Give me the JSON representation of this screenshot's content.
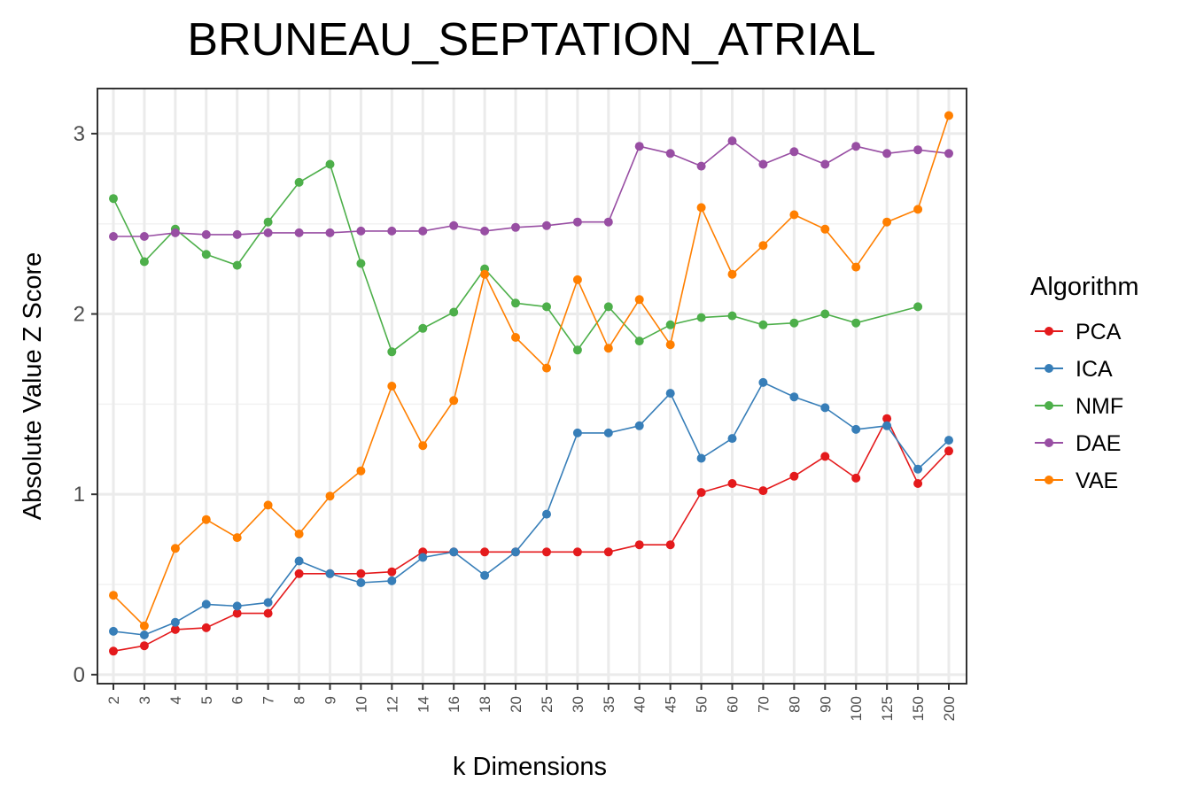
{
  "chart_data": {
    "type": "line",
    "title": "BRUNEAU_SEPTATION_ATRIAL",
    "xlabel": "k Dimensions",
    "ylabel": "Absolute Value Z Score",
    "categories": [
      "2",
      "3",
      "4",
      "5",
      "6",
      "7",
      "8",
      "9",
      "10",
      "12",
      "14",
      "16",
      "18",
      "20",
      "25",
      "30",
      "35",
      "40",
      "45",
      "50",
      "60",
      "70",
      "80",
      "90",
      "100",
      "125",
      "150",
      "200"
    ],
    "ylim": [
      -0.05,
      3.25
    ],
    "yticks": [
      0,
      1,
      2,
      3
    ],
    "grid": true,
    "legend": {
      "title": "Algorithm",
      "placement": "right"
    },
    "series": [
      {
        "name": "PCA",
        "color": "#e41a1c",
        "values": [
          0.13,
          0.16,
          0.25,
          0.26,
          0.34,
          0.34,
          0.56,
          0.56,
          0.56,
          0.57,
          0.68,
          0.68,
          0.68,
          0.68,
          0.68,
          0.68,
          0.68,
          0.72,
          0.72,
          1.01,
          1.06,
          1.02,
          1.1,
          1.21,
          1.09,
          1.42,
          1.06,
          1.24
        ]
      },
      {
        "name": "ICA",
        "color": "#377eb8",
        "values": [
          0.24,
          0.22,
          0.29,
          0.39,
          0.38,
          0.4,
          0.63,
          0.56,
          0.51,
          0.52,
          0.65,
          0.68,
          0.55,
          0.68,
          0.89,
          1.34,
          1.34,
          1.38,
          1.56,
          1.2,
          1.31,
          1.62,
          1.54,
          1.48,
          1.36,
          1.38,
          1.14,
          1.3
        ]
      },
      {
        "name": "NMF",
        "color": "#4daf4a",
        "values": [
          2.64,
          2.29,
          2.47,
          2.33,
          2.27,
          2.51,
          2.73,
          2.83,
          2.28,
          1.79,
          1.92,
          2.01,
          2.25,
          2.06,
          2.04,
          1.8,
          2.04,
          1.85,
          1.94,
          1.98,
          1.99,
          1.94,
          1.95,
          2.0,
          1.95,
          null,
          2.04,
          null
        ]
      },
      {
        "name": "DAE",
        "color": "#984ea3",
        "values": [
          2.43,
          2.43,
          2.45,
          2.44,
          2.44,
          2.45,
          2.45,
          2.45,
          2.46,
          2.46,
          2.46,
          2.49,
          2.46,
          2.48,
          2.49,
          2.51,
          2.51,
          2.93,
          2.89,
          2.82,
          2.96,
          2.83,
          2.9,
          2.83,
          2.93,
          2.89,
          2.91,
          2.89
        ]
      },
      {
        "name": "VAE",
        "color": "#ff7f00",
        "values": [
          0.44,
          0.27,
          0.7,
          0.86,
          0.76,
          0.94,
          0.78,
          0.99,
          1.13,
          1.6,
          1.27,
          1.52,
          2.22,
          1.87,
          1.7,
          2.19,
          1.81,
          2.08,
          1.83,
          2.59,
          2.22,
          2.38,
          2.55,
          2.47,
          2.26,
          2.51,
          2.58,
          3.1
        ]
      }
    ]
  }
}
